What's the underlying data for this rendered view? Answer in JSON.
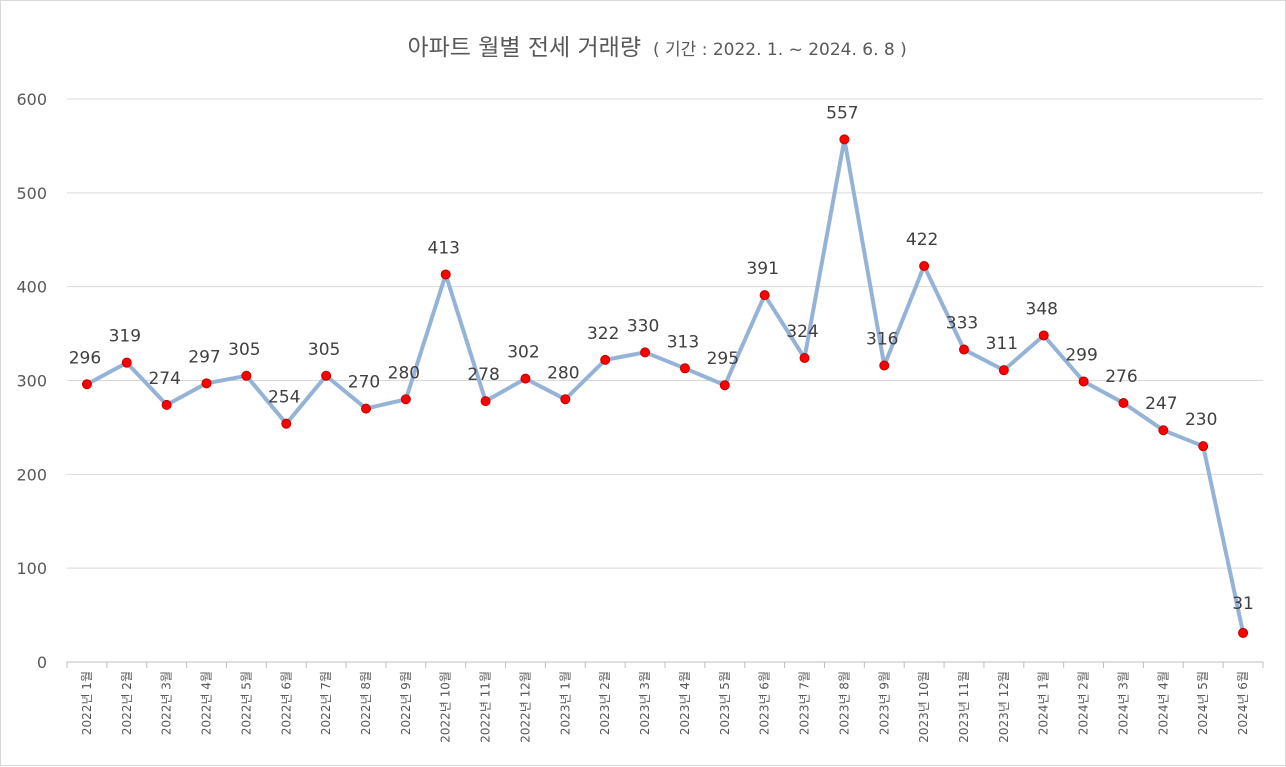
{
  "chart_data": {
    "type": "line",
    "title": "아파트 월별 전세 거래량",
    "subtitle": "( 기간 : 2022. 1. ~ 2024. 6. 8 )",
    "xlabel": "",
    "ylabel": "",
    "ylim": [
      0,
      600
    ],
    "yticks": [
      0,
      100,
      200,
      300,
      400,
      500,
      600
    ],
    "grid": true,
    "legend": "none",
    "categories": [
      "2022년 1월",
      "2022년 2월",
      "2022년 3월",
      "2022년 4월",
      "2022년 5월",
      "2022년 6월",
      "2022년 7월",
      "2022년 8월",
      "2022년 9월",
      "2022년 10월",
      "2022년 11월",
      "2022년 12월",
      "2023년 1월",
      "2023년 2월",
      "2023년 3월",
      "2023년 4월",
      "2023년 5월",
      "2023년 6월",
      "2023년 7월",
      "2023년 8월",
      "2023년 9월",
      "2023년 10월",
      "2023년 11월",
      "2023년 12월",
      "2024년 1월",
      "2024년 2월",
      "2024년 3월",
      "2024년 4월",
      "2024년 5월",
      "2024년 6월"
    ],
    "series": [
      {
        "name": "전세 거래량",
        "values": [
          296,
          319,
          274,
          297,
          305,
          254,
          305,
          270,
          280,
          413,
          278,
          302,
          280,
          322,
          330,
          313,
          295,
          391,
          324,
          557,
          316,
          422,
          333,
          311,
          348,
          299,
          276,
          247,
          230,
          31
        ]
      }
    ],
    "colors": {
      "line": "#95b3d7",
      "marker_fill": "#ff0000",
      "marker_stroke": "#c00000",
      "grid": "#d9d9d9",
      "axis": "#bfbfbf",
      "text": "#595959"
    }
  }
}
